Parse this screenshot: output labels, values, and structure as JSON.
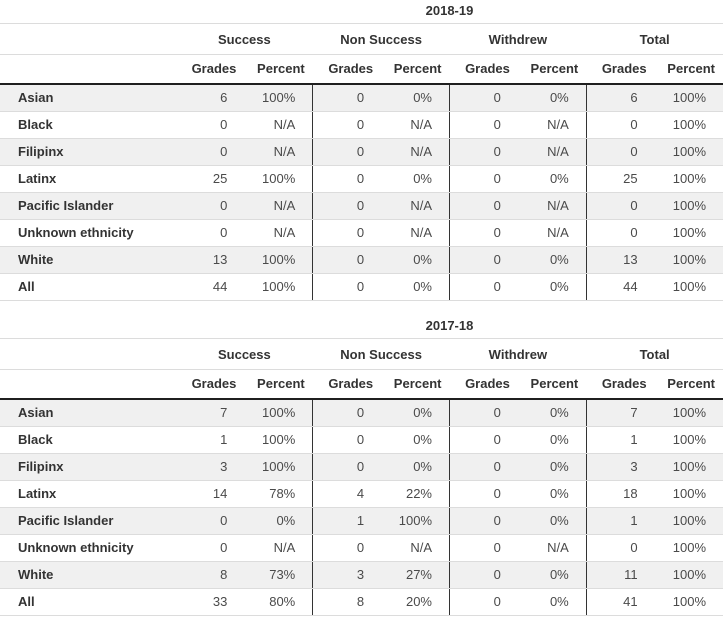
{
  "colors": {
    "stripe": "#f0f0f0",
    "border_light": "#dcdcdc",
    "border_dark": "#1f1f1f",
    "group_separator": "#333333",
    "label_text": "#333333",
    "value_text": "#4a4a4a",
    "page_bg": "#ffffff"
  },
  "chart_data": [
    {
      "type": "table",
      "title": "2018-19",
      "row_header_label": "",
      "column_groups": [
        "Success",
        "Non Success",
        "Withdrew",
        "Total"
      ],
      "sub_columns": [
        "Grades",
        "Percent"
      ],
      "rows": [
        {
          "label": "Asian",
          "values": [
            "6",
            "100%",
            "0",
            "0%",
            "0",
            "0%",
            "6",
            "100%"
          ]
        },
        {
          "label": "Black",
          "values": [
            "0",
            "N/A",
            "0",
            "N/A",
            "0",
            "N/A",
            "0",
            "100%"
          ]
        },
        {
          "label": "Filipinx",
          "values": [
            "0",
            "N/A",
            "0",
            "N/A",
            "0",
            "N/A",
            "0",
            "100%"
          ]
        },
        {
          "label": "Latinx",
          "values": [
            "25",
            "100%",
            "0",
            "0%",
            "0",
            "0%",
            "25",
            "100%"
          ]
        },
        {
          "label": "Pacific Islander",
          "values": [
            "0",
            "N/A",
            "0",
            "N/A",
            "0",
            "N/A",
            "0",
            "100%"
          ]
        },
        {
          "label": "Unknown ethnicity",
          "values": [
            "0",
            "N/A",
            "0",
            "N/A",
            "0",
            "N/A",
            "0",
            "100%"
          ]
        },
        {
          "label": "White",
          "values": [
            "13",
            "100%",
            "0",
            "0%",
            "0",
            "0%",
            "13",
            "100%"
          ]
        },
        {
          "label": "All",
          "values": [
            "44",
            "100%",
            "0",
            "0%",
            "0",
            "0%",
            "44",
            "100%"
          ]
        }
      ]
    },
    {
      "type": "table",
      "title": "2017-18",
      "row_header_label": "",
      "column_groups": [
        "Success",
        "Non Success",
        "Withdrew",
        "Total"
      ],
      "sub_columns": [
        "Grades",
        "Percent"
      ],
      "rows": [
        {
          "label": "Asian",
          "values": [
            "7",
            "100%",
            "0",
            "0%",
            "0",
            "0%",
            "7",
            "100%"
          ]
        },
        {
          "label": "Black",
          "values": [
            "1",
            "100%",
            "0",
            "0%",
            "0",
            "0%",
            "1",
            "100%"
          ]
        },
        {
          "label": "Filipinx",
          "values": [
            "3",
            "100%",
            "0",
            "0%",
            "0",
            "0%",
            "3",
            "100%"
          ]
        },
        {
          "label": "Latinx",
          "values": [
            "14",
            "78%",
            "4",
            "22%",
            "0",
            "0%",
            "18",
            "100%"
          ]
        },
        {
          "label": "Pacific Islander",
          "values": [
            "0",
            "0%",
            "1",
            "100%",
            "0",
            "0%",
            "1",
            "100%"
          ]
        },
        {
          "label": "Unknown ethnicity",
          "values": [
            "0",
            "N/A",
            "0",
            "N/A",
            "0",
            "N/A",
            "0",
            "100%"
          ]
        },
        {
          "label": "White",
          "values": [
            "8",
            "73%",
            "3",
            "27%",
            "0",
            "0%",
            "11",
            "100%"
          ]
        },
        {
          "label": "All",
          "values": [
            "33",
            "80%",
            "8",
            "20%",
            "0",
            "0%",
            "41",
            "100%"
          ]
        }
      ]
    }
  ]
}
